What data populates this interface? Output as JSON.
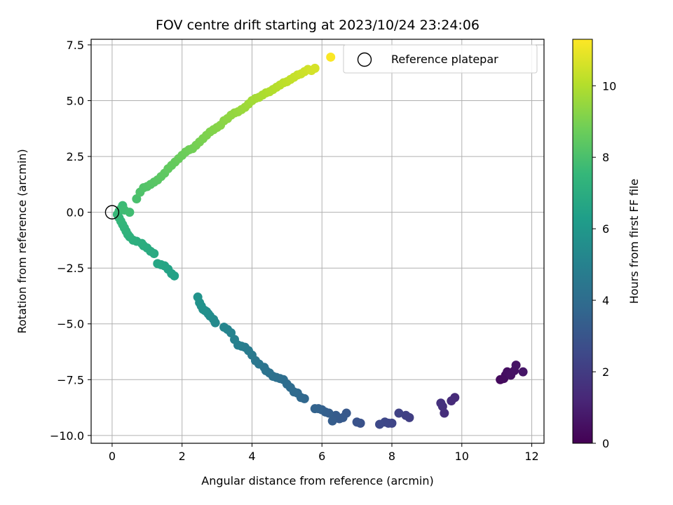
{
  "chart_data": {
    "type": "scatter",
    "title": "FOV centre drift starting at 2023/10/24 23:24:06",
    "xlabel": "Angular distance from reference (arcmin)",
    "ylabel": "Rotation from reference (arcmin)",
    "xlim": [
      -0.6,
      12.35
    ],
    "ylim": [
      -10.35,
      7.75
    ],
    "xticks": [
      0,
      2,
      4,
      6,
      8,
      10,
      12
    ],
    "xtick_labels": [
      "0",
      "2",
      "4",
      "6",
      "8",
      "10",
      "12"
    ],
    "yticks": [
      -10.0,
      -7.5,
      -5.0,
      -2.5,
      0.0,
      2.5,
      5.0,
      7.5
    ],
    "ytick_labels": [
      "−10.0",
      "−7.5",
      "−5.0",
      "−2.5",
      "0.0",
      "2.5",
      "5.0",
      "7.5"
    ],
    "grid": true,
    "colormap": "viridis",
    "colorbar": {
      "label": "Hours from first FF file",
      "range": [
        0,
        11.3
      ],
      "ticks": [
        0,
        2,
        4,
        6,
        8,
        10
      ],
      "tick_labels": [
        "0",
        "2",
        "4",
        "6",
        "8",
        "10"
      ]
    },
    "legend": {
      "position": "top-right",
      "entries": [
        "Reference platepar"
      ]
    },
    "reference_point": {
      "x": 0,
      "y": 0
    },
    "series": [
      {
        "x": [
          11.1,
          11.2,
          11.25,
          11.3,
          11.4,
          11.5,
          11.55,
          11.75,
          9.8,
          9.7,
          9.5,
          9.45,
          9.4,
          8.5,
          8.4,
          8.2,
          8.0,
          7.9,
          7.8,
          7.65,
          7.1,
          7.0,
          6.7,
          6.6,
          6.5,
          6.4,
          6.3,
          6.2,
          6.1,
          6.0,
          5.9,
          5.8,
          5.5,
          5.4,
          5.3,
          5.2,
          5.1,
          5.0,
          4.9,
          4.8,
          4.7,
          4.6,
          4.5,
          4.4,
          4.35,
          4.2,
          4.1,
          4.0,
          3.9,
          3.8,
          3.7,
          3.6,
          3.5,
          3.4,
          3.3,
          3.2,
          2.95,
          2.9,
          2.8,
          2.75,
          2.7,
          2.65,
          2.6,
          2.55,
          2.5,
          2.45,
          1.78,
          1.7,
          1.6,
          1.5,
          1.4,
          1.3,
          1.2,
          1.1,
          1.0,
          0.9,
          0.85,
          0.7,
          0.6,
          0.5,
          0.45,
          0.4,
          0.35,
          0.3,
          0.25,
          0.2,
          0.15,
          0.2,
          0.25,
          0.3,
          0.35,
          0.5,
          0.7,
          0.8,
          0.9,
          1.0,
          1.1,
          1.2,
          1.3,
          1.4,
          1.5,
          1.6,
          1.7,
          1.8,
          1.9,
          2.0,
          2.1,
          2.2,
          2.3,
          2.4,
          2.5,
          2.6,
          2.7,
          2.8,
          2.9,
          3.0,
          3.1,
          3.2,
          3.3,
          3.4,
          3.5,
          3.6,
          3.7,
          3.8,
          3.9,
          4.0,
          4.1,
          4.2,
          4.3,
          4.4,
          4.5,
          4.6,
          4.7,
          4.8,
          4.9,
          5.0,
          5.1,
          5.2,
          5.3,
          5.4,
          5.5,
          5.6,
          5.7,
          5.8,
          6.25
        ],
        "y": [
          -7.5,
          -7.45,
          -7.3,
          -7.15,
          -7.3,
          -7.1,
          -6.85,
          -7.15,
          -8.3,
          -8.45,
          -9.0,
          -8.7,
          -8.55,
          -9.2,
          -9.1,
          -9.0,
          -9.45,
          -9.45,
          -9.4,
          -9.5,
          -9.45,
          -9.4,
          -9.0,
          -9.2,
          -9.25,
          -9.1,
          -9.35,
          -9.0,
          -8.95,
          -8.85,
          -8.8,
          -8.8,
          -8.35,
          -8.3,
          -8.1,
          -8.05,
          -7.85,
          -7.7,
          -7.5,
          -7.45,
          -7.4,
          -7.35,
          -7.2,
          -7.1,
          -6.95,
          -6.8,
          -6.65,
          -6.4,
          -6.2,
          -6.05,
          -6.0,
          -5.95,
          -5.7,
          -5.4,
          -5.25,
          -5.15,
          -4.95,
          -4.8,
          -4.65,
          -4.55,
          -4.45,
          -4.4,
          -4.35,
          -4.2,
          -4.05,
          -3.8,
          -2.85,
          -2.75,
          -2.55,
          -2.4,
          -2.35,
          -2.3,
          -1.85,
          -1.75,
          -1.6,
          -1.5,
          -1.4,
          -1.3,
          -1.25,
          -1.1,
          -1.0,
          -0.85,
          -0.7,
          -0.55,
          -0.4,
          -0.25,
          -0.1,
          0.05,
          0.15,
          0.3,
          0.1,
          0.0,
          0.6,
          0.9,
          1.1,
          1.15,
          1.25,
          1.35,
          1.45,
          1.6,
          1.75,
          1.95,
          2.1,
          2.25,
          2.4,
          2.55,
          2.7,
          2.8,
          2.85,
          3.0,
          3.15,
          3.3,
          3.45,
          3.6,
          3.7,
          3.8,
          3.9,
          4.1,
          4.2,
          4.35,
          4.45,
          4.5,
          4.6,
          4.7,
          4.85,
          5.0,
          5.1,
          5.15,
          5.25,
          5.35,
          5.4,
          5.5,
          5.6,
          5.7,
          5.8,
          5.85,
          5.95,
          6.05,
          6.15,
          6.2,
          6.3,
          6.4,
          6.35,
          6.45,
          6.95
        ],
        "hours": [
          0.3,
          0.35,
          0.4,
          0.45,
          0.5,
          0.55,
          0.6,
          0.65,
          1.35,
          1.4,
          1.5,
          1.55,
          1.6,
          2.1,
          2.15,
          2.25,
          2.35,
          2.4,
          2.45,
          2.5,
          2.85,
          2.9,
          3.1,
          3.15,
          3.2,
          3.25,
          3.3,
          3.35,
          3.4,
          3.45,
          3.5,
          3.55,
          3.75,
          3.8,
          3.85,
          3.9,
          3.95,
          4.0,
          4.05,
          4.1,
          4.15,
          4.2,
          4.25,
          4.3,
          4.35,
          4.45,
          4.5,
          4.6,
          4.7,
          4.75,
          4.8,
          4.85,
          4.95,
          5.05,
          5.1,
          5.15,
          5.35,
          5.4,
          5.45,
          5.5,
          5.55,
          5.6,
          5.65,
          5.7,
          5.75,
          5.8,
          6.45,
          6.5,
          6.55,
          6.6,
          6.65,
          6.7,
          6.85,
          6.9,
          6.95,
          7.0,
          7.05,
          7.1,
          7.15,
          7.2,
          7.25,
          7.3,
          7.35,
          7.4,
          7.45,
          7.5,
          7.55,
          7.6,
          7.65,
          7.7,
          7.75,
          7.8,
          8.0,
          8.1,
          8.15,
          8.2,
          8.25,
          8.3,
          8.35,
          8.4,
          8.45,
          8.5,
          8.55,
          8.6,
          8.65,
          8.7,
          8.75,
          8.8,
          8.85,
          8.9,
          8.95,
          9.0,
          9.05,
          9.1,
          9.15,
          9.2,
          9.25,
          9.3,
          9.35,
          9.4,
          9.45,
          9.5,
          9.55,
          9.6,
          9.65,
          9.7,
          9.75,
          9.8,
          9.85,
          9.9,
          9.95,
          10.0,
          10.05,
          10.1,
          10.15,
          10.2,
          10.25,
          10.3,
          10.35,
          10.4,
          10.45,
          10.5,
          10.55,
          10.6,
          11.25
        ]
      }
    ]
  }
}
